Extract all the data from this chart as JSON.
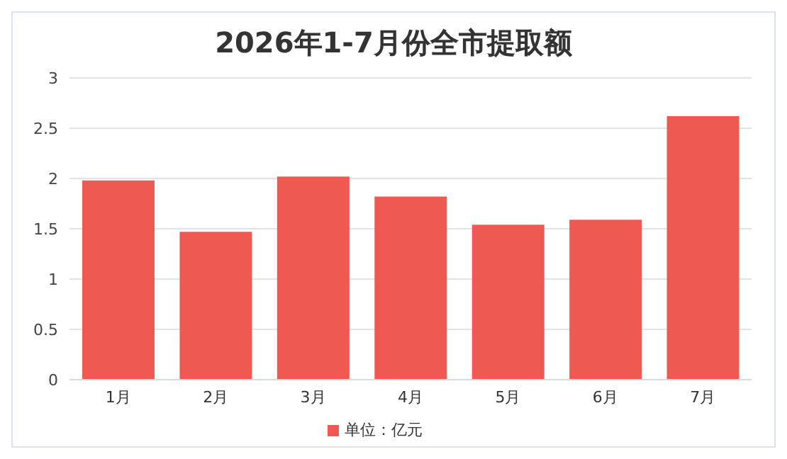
{
  "chart_data": {
    "type": "bar",
    "title": "2026年1-7月份全市提取额",
    "categories": [
      "1月",
      "2月",
      "3月",
      "4月",
      "5月",
      "6月",
      "7月"
    ],
    "series": [
      {
        "name": "单位：亿元",
        "color": "#ee5a52",
        "values": [
          1.98,
          1.47,
          2.02,
          1.82,
          1.54,
          1.59,
          2.62
        ]
      }
    ],
    "ylim": [
      0,
      3
    ],
    "yticks": [
      0,
      0.5,
      1,
      1.5,
      2,
      2.5,
      3
    ],
    "grid": "y",
    "legend": "bottom"
  }
}
